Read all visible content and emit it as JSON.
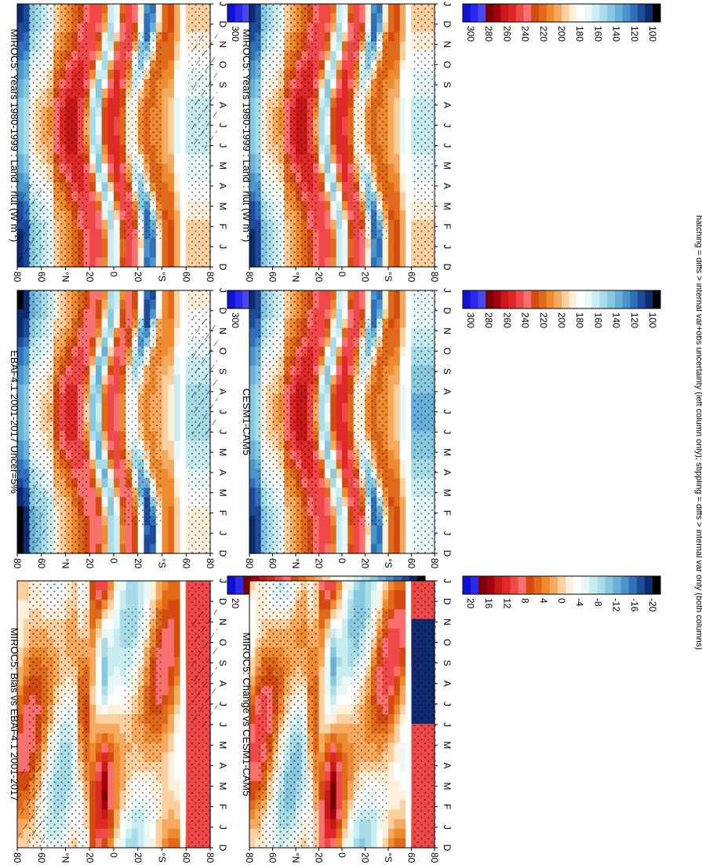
{
  "figure": {
    "caption": "hatching = diffs > internal var+obs uncertainty (left column only); stippling = diffs > internal var only (both columns)",
    "orientation": "rotated-90-clockwise"
  },
  "shared": {
    "month_labels": [
      "D",
      "J",
      "F",
      "M",
      "A",
      "M",
      "J",
      "J",
      "A",
      "S",
      "O",
      "N",
      "D",
      "J"
    ],
    "lat_labels": [
      "80",
      "60",
      "°N",
      "20",
      "0",
      "20",
      "°S",
      "60",
      "80"
    ],
    "lat_values": [
      80,
      60,
      40,
      20,
      0,
      -20,
      -40,
      -60,
      -80
    ],
    "abs_colorbar_labels": [
      "300",
      "280",
      "260",
      "240",
      "220",
      "200",
      "180",
      "160",
      "140",
      "120",
      "100"
    ],
    "abs_colorbar_colors": [
      "#1010d8",
      "#2a2ae8",
      "#4848f0",
      "#7a0000",
      "#a00010",
      "#c81818",
      "#e02828",
      "#f04848",
      "#f87070",
      "#d44a10",
      "#e06a1a",
      "#ee8a30",
      "#f5aa60",
      "#fbd0a0",
      "#fff0dc",
      "#ffffff",
      "#e8f8f8",
      "#c8ecf0",
      "#a8dce8",
      "#88c8e0",
      "#68b0d8",
      "#4a94cc",
      "#3070b8",
      "#1e4a9a",
      "#0e2a70",
      "#000000"
    ],
    "diff_colorbar_labels": [
      "20",
      "16",
      "12",
      "8",
      "4",
      "0",
      "-4",
      "-8",
      "-12",
      "-16",
      "-20"
    ],
    "diff_colorbar_colors": [
      "#1010d8",
      "#2a2ae8",
      "#7a0000",
      "#a00010",
      "#c81818",
      "#e02828",
      "#f04848",
      "#f87070",
      "#d44a10",
      "#e06a1a",
      "#ee8a30",
      "#f5aa60",
      "#fbd0a0",
      "#fff0dc",
      "#ffffff",
      "#e8f8f8",
      "#c8ecf0",
      "#a8dce8",
      "#88c8e0",
      "#68b0d8",
      "#4a94cc",
      "#3070b8",
      "#1e4a9a",
      "#0e2a70",
      "#000000"
    ]
  },
  "chart_data": [
    {
      "type": "heatmap",
      "id": "left-top",
      "title": "MIROC5: Years 1980-1999 : Land : rlut (W m",
      "title_sup": "-2",
      "title_end": ")",
      "x": "month (D to J, repeated annual cycle)",
      "y": "latitude (80N to 80S)",
      "value_range": [
        100,
        300
      ],
      "units": "W m-2",
      "hatching": true,
      "stippling": true
    },
    {
      "type": "heatmap",
      "id": "right-top",
      "title": "MIROC5: Years 1980-1999 : Land : rlut (W m",
      "title_sup": "-2",
      "title_end": ")",
      "x": "month (D to J, repeated annual cycle)",
      "y": "latitude (80N to 80S)",
      "value_range": [
        100,
        300
      ],
      "units": "W m-2",
      "hatching": false,
      "stippling": true
    },
    {
      "type": "heatmap",
      "id": "left-middle",
      "title": "EBAF4.1 2001-2017 Uncer=5%",
      "x": "month",
      "y": "latitude",
      "value_range": [
        100,
        300
      ],
      "hatching": true,
      "stippling": true
    },
    {
      "type": "heatmap",
      "id": "right-middle",
      "title": "CESM1-CAM5",
      "x": "month",
      "y": "latitude",
      "value_range": [
        100,
        300
      ],
      "hatching": false,
      "stippling": true
    },
    {
      "type": "heatmap",
      "id": "left-bottom",
      "title": "MIROC5: Bias vs EBAF4.1 2001-2017",
      "x": "month",
      "y": "latitude",
      "value_range": [
        -20,
        20
      ],
      "hatching": true,
      "stippling": true
    },
    {
      "type": "heatmap",
      "id": "right-bottom",
      "title": "MIROC5: Change vs CESM1-CAM5",
      "x": "month",
      "y": "latitude",
      "value_range": [
        -20,
        20
      ],
      "hatching": false,
      "stippling": true
    }
  ]
}
